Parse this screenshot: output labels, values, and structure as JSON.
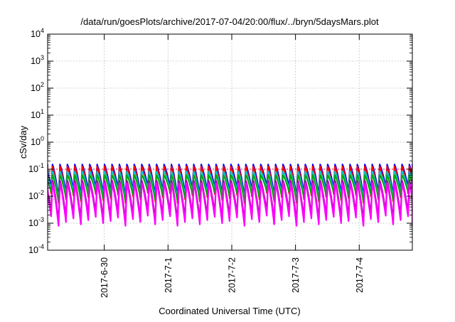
{
  "chart_data": {
    "type": "line",
    "title": "/data/run/goesPlots/archive/2017-07-04/20:00/flux/../bryn/5daysMars.plot",
    "xlabel": "Coordinated Universal Time (UTC)",
    "ylabel": "cSv/day",
    "yscale": "log",
    "ylim": [
      0.0001,
      10000
    ],
    "xlim": [
      "2017-06-29T02:40",
      "2017-07-04T20:00"
    ],
    "grid": true,
    "legend": "none",
    "y_ticks": [
      {
        "base": "10",
        "exp": "-4",
        "value": 0.0001
      },
      {
        "base": "10",
        "exp": "-3",
        "value": 0.001
      },
      {
        "base": "10",
        "exp": "-2",
        "value": 0.01
      },
      {
        "base": "10",
        "exp": "-1",
        "value": 0.1
      },
      {
        "base": "10",
        "exp": "0",
        "value": 1
      },
      {
        "base": "10",
        "exp": "1",
        "value": 10
      },
      {
        "base": "10",
        "exp": "2",
        "value": 100
      },
      {
        "base": "10",
        "exp": "3",
        "value": 1000
      },
      {
        "base": "10",
        "exp": "4",
        "value": 10000
      }
    ],
    "x_ticks": [
      {
        "label": "2017-6-30",
        "value": "2017-06-30T00:00"
      },
      {
        "label": "2017-7-1",
        "value": "2017-07-01T00:00"
      },
      {
        "label": "2017-7-2",
        "value": "2017-07-02T00:00"
      },
      {
        "label": "2017-7-3",
        "value": "2017-07-03T00:00"
      },
      {
        "label": "2017-7-4",
        "value": "2017-07-04T00:00"
      }
    ],
    "oscillation": {
      "period_hours": 2.8,
      "peak_level": 0.15,
      "trough_levels": [
        0.0018,
        0.0008,
        0.0011,
        0.0015,
        0.0009,
        0.0013,
        0.0017,
        0.001,
        0.0012,
        0.0016,
        0.0008,
        0.0014,
        0.0011,
        0.0019,
        0.0009,
        0.0013
      ]
    },
    "series": [
      {
        "color": "#0000ff",
        "peak_factor": 1.0,
        "trough_factor": 12
      },
      {
        "color": "#ff0000",
        "peak_factor": 0.85,
        "trough_factor": 7
      },
      {
        "color": "#00c8c8",
        "peak_factor": 0.55,
        "trough_factor": 10
      },
      {
        "color": "#00aa00",
        "peak_factor": 0.4,
        "trough_factor": 8
      },
      {
        "color": "#a000a0",
        "peak_factor": 0.25,
        "trough_factor": 1.4
      },
      {
        "color": "#ff00ff",
        "peak_factor": 0.2,
        "trough_factor": 1.0
      }
    ],
    "reference_line": {
      "color": "#ff0000",
      "value": 0.1
    }
  }
}
